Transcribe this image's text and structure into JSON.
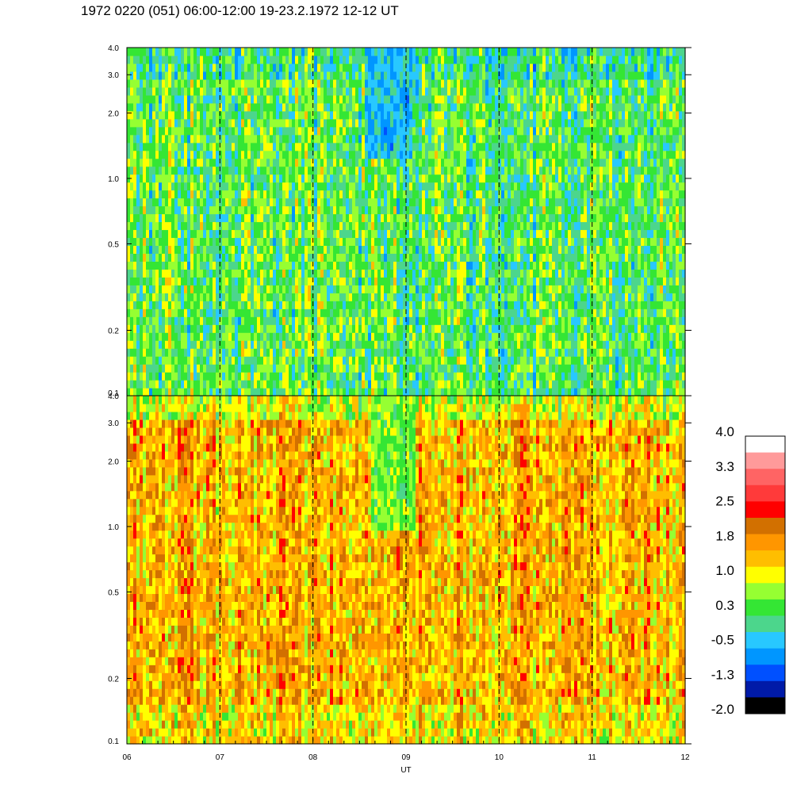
{
  "title": "1972 0220 (051) 06:00-12:00 19-23.2.1972  12-12 UT",
  "chart_data": {
    "type": "heatmap",
    "xlabel": "UT",
    "x_ticks": [
      "06",
      "07",
      "08",
      "09",
      "10",
      "11",
      "12"
    ],
    "xlim": [
      6,
      12
    ],
    "dashed_hour_lines": [
      7,
      8,
      9,
      10,
      11
    ],
    "panels": [
      {
        "id": "upper",
        "y_scale": "log",
        "ylim": [
          0.1,
          4.0
        ],
        "y_ticks": [
          {
            "value": 0.1,
            "label": "0.1"
          },
          {
            "value": 0.2,
            "label": "0.2"
          },
          {
            "value": 0.5,
            "label": "0.5"
          },
          {
            "value": 1.0,
            "label": "1.0"
          },
          {
            "value": 2.0,
            "label": "2.0"
          },
          {
            "value": 3.0,
            "label": "3.0"
          },
          {
            "value": 4.0,
            "label": "4.0"
          }
        ],
        "dominant_level": 0.3,
        "low_feature": {
          "x_start": 8.55,
          "x_end": 9.05,
          "y_from": 1.2,
          "level": -0.5
        }
      },
      {
        "id": "lower",
        "y_scale": "log",
        "ylim": [
          0.1,
          4.0
        ],
        "y_ticks": [
          {
            "value": 0.1,
            "label": "0.1"
          },
          {
            "value": 0.2,
            "label": "0.2"
          },
          {
            "value": 0.5,
            "label": "0.5"
          },
          {
            "value": 1.0,
            "label": "1.0"
          },
          {
            "value": 2.0,
            "label": "2.0"
          },
          {
            "value": 3.0,
            "label": "3.0"
          },
          {
            "value": 4.0,
            "label": "4.0"
          }
        ],
        "dominant_level": 1.5,
        "low_feature": {
          "x_start": 8.6,
          "x_end": 9.1,
          "y_from": 1.0,
          "level": 0.5
        }
      }
    ],
    "colorbar": {
      "labels": [
        "4.0",
        "3.3",
        "2.5",
        "1.8",
        "1.0",
        "0.3",
        "-0.5",
        "-1.3",
        "-2.0"
      ],
      "range": [
        -2.0,
        4.0
      ],
      "colors": [
        "#000000",
        "#001aa8",
        "#0050ff",
        "#0096ff",
        "#28c8ff",
        "#4cd68c",
        "#34e634",
        "#96ff32",
        "#ffff00",
        "#ffbe00",
        "#ff9600",
        "#d27000",
        "#ff0000",
        "#ff3a3a",
        "#ff6464",
        "#ff9a9a",
        "#ffffff"
      ]
    }
  }
}
